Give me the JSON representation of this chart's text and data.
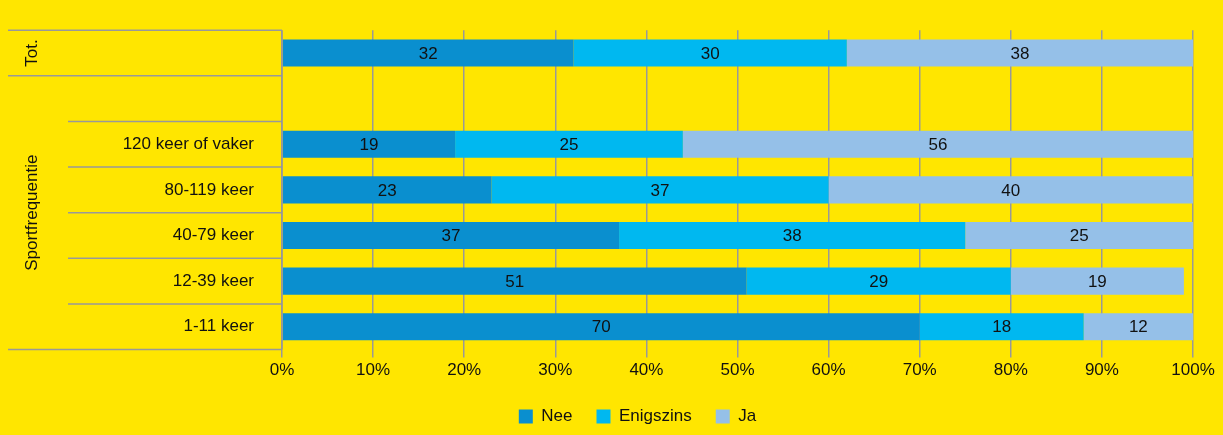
{
  "chart_data": {
    "type": "bar",
    "orientation": "horizontal",
    "stacked": true,
    "categories": [
      null,
      null,
      "120 keer of vaker",
      "80-119 keer",
      "40-79 keer",
      "12-39 keer",
      "1-11 keer"
    ],
    "series": [
      {
        "name": "Nee",
        "color": "#0a8fcf",
        "values": [
          32,
          null,
          19,
          23,
          37,
          51,
          70
        ]
      },
      {
        "name": "Enigszins",
        "color": "#00b8f0",
        "values": [
          30,
          null,
          25,
          37,
          38,
          29,
          18
        ]
      },
      {
        "name": "Ja",
        "color": "#95c0e8",
        "values": [
          38,
          null,
          56,
          40,
          25,
          19,
          12
        ]
      }
    ],
    "annotations": [
      "Tot.",
      "Sportfrequentie"
    ],
    "xlim": [
      0,
      100
    ],
    "xticks": [
      {
        "value": 0,
        "label": "0%"
      },
      {
        "value": 10,
        "label": "10%"
      },
      {
        "value": 20,
        "label": "20%"
      },
      {
        "value": 30,
        "label": "30%"
      },
      {
        "value": 40,
        "label": "40%"
      },
      {
        "value": 50,
        "label": "50%"
      },
      {
        "value": 60,
        "label": "60%"
      },
      {
        "value": 70,
        "label": "70%"
      },
      {
        "value": 80,
        "label": "80%"
      },
      {
        "value": 90,
        "label": "90%"
      },
      {
        "value": 100,
        "label": "100%"
      }
    ],
    "grid": "x",
    "legend": "bottom",
    "data_labels": true
  }
}
